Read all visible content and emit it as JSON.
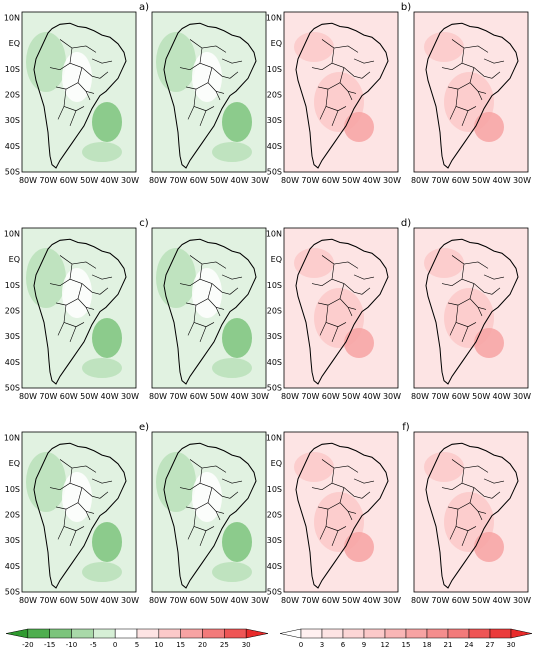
{
  "palette": {
    "green_dark": "#2f9a2f",
    "green_mid": "#7cc47c",
    "green_light": "#b9e0b9",
    "green_pale": "#e1f2e1",
    "neutral": "#ffffff",
    "pink_pale": "#fde4e4",
    "pink_light": "#fbc9c9",
    "pink_mid": "#f7a3a3",
    "red": "#ee5555",
    "coast": "#000000"
  },
  "panels": [
    {
      "label": "a)",
      "label_anchor": "between",
      "pair": "green",
      "row": 0
    },
    {
      "label": "b)",
      "label_anchor": "between",
      "pair": "pink",
      "row": 0
    },
    {
      "label": "c)",
      "label_anchor": "between",
      "pair": "green",
      "row": 1
    },
    {
      "label": "d)",
      "label_anchor": "between",
      "pair": "pink",
      "row": 1
    },
    {
      "label": "e)",
      "label_anchor": "between",
      "pair": "green",
      "row": 2
    },
    {
      "label": "f)",
      "label_anchor": "between",
      "pair": "pink",
      "row": 2
    }
  ],
  "lat_labels": [
    "10N",
    "EQ",
    "10S",
    "20S",
    "30S",
    "40S",
    "50S"
  ],
  "lon_labels": [
    "80W",
    "70W",
    "60W",
    "50W",
    "40W",
    "30W"
  ],
  "colorbar_left": {
    "ticks": [
      "-20",
      "-15",
      "-10",
      "-5",
      "0",
      "5",
      "10",
      "15",
      "20",
      "25",
      "30"
    ],
    "colors": [
      "#2f9a2f",
      "#4fae4f",
      "#7cc47c",
      "#a9d9a9",
      "#d6efd6",
      "#ffffff",
      "#fde4e4",
      "#fbc9c9",
      "#f7a3a3",
      "#f27a7a",
      "#ee5555",
      "#e82a2a"
    ]
  },
  "colorbar_right": {
    "ticks": [
      "0",
      "3",
      "6",
      "9",
      "12",
      "15",
      "18",
      "21",
      "24",
      "27",
      "30"
    ],
    "colors": [
      "#ffffff",
      "#fff0f0",
      "#fde4e4",
      "#fcd6d6",
      "#fbc9c9",
      "#f9b6b6",
      "#f7a3a3",
      "#f48d8d",
      "#f27a7a",
      "#ee5555",
      "#ea3b3b",
      "#e82a2a"
    ]
  }
}
